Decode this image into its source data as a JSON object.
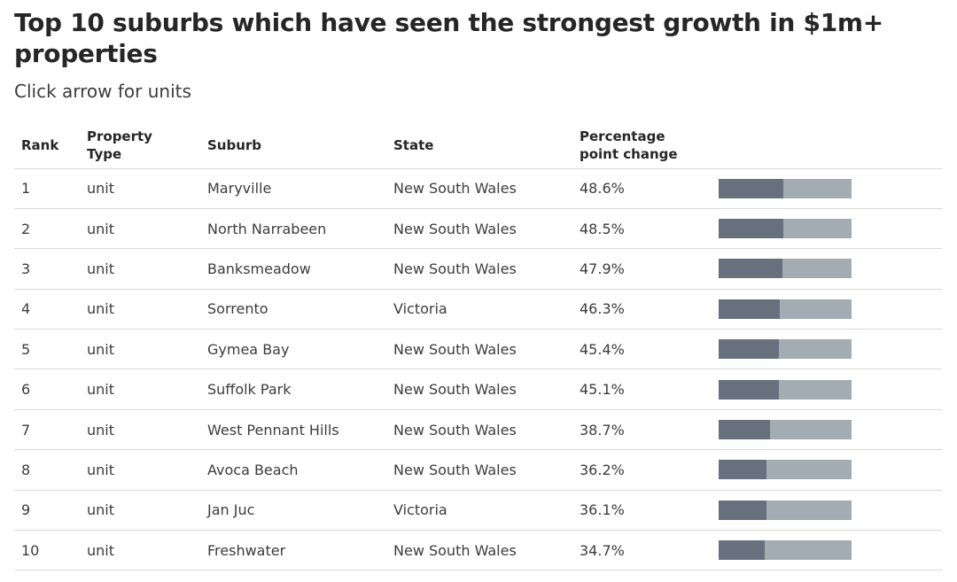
{
  "title": "Top 10 suburbs which have seen the strongest growth in $1m+ properties",
  "subtitle": "Click arrow for units",
  "colors": {
    "bar_fill": "#66717d",
    "bar_track": "#a3abb3",
    "text": "#3c3c3c",
    "rule": "#d9d9d9"
  },
  "table": {
    "headers": {
      "rank": "Rank",
      "property_type": "Property Type",
      "suburb": "Suburb",
      "state": "State",
      "change": "Percentage point change"
    },
    "rows": [
      {
        "rank": "1",
        "type": "unit",
        "suburb": "Maryville",
        "state": "New South Wales",
        "change": "48.6%"
      },
      {
        "rank": "2",
        "type": "unit",
        "suburb": "North Narrabeen",
        "state": "New South Wales",
        "change": "48.5%"
      },
      {
        "rank": "3",
        "type": "unit",
        "suburb": "Banksmeadow",
        "state": "New South Wales",
        "change": "47.9%"
      },
      {
        "rank": "4",
        "type": "unit",
        "suburb": "Sorrento",
        "state": "Victoria",
        "change": "46.3%"
      },
      {
        "rank": "5",
        "type": "unit",
        "suburb": "Gymea Bay",
        "state": "New South Wales",
        "change": "45.4%"
      },
      {
        "rank": "6",
        "type": "unit",
        "suburb": "Suffolk Park",
        "state": "New South Wales",
        "change": "45.1%"
      },
      {
        "rank": "7",
        "type": "unit",
        "suburb": "West Pennant Hills",
        "state": "New South Wales",
        "change": "38.7%"
      },
      {
        "rank": "8",
        "type": "unit",
        "suburb": "Avoca Beach",
        "state": "New South Wales",
        "change": "36.2%"
      },
      {
        "rank": "9",
        "type": "unit",
        "suburb": "Jan Juc",
        "state": "Victoria",
        "change": "36.1%"
      },
      {
        "rank": "10",
        "type": "unit",
        "suburb": "Freshwater",
        "state": "New South Wales",
        "change": "34.7%"
      }
    ]
  },
  "chart_data": {
    "type": "table",
    "title": "Top 10 suburbs which have seen the strongest growth in $1m+ properties",
    "subtitle": "Click arrow for units",
    "columns": [
      "Rank",
      "Property Type",
      "Suburb",
      "State",
      "Percentage point change"
    ],
    "categories": [
      "Maryville",
      "North Narrabeen",
      "Banksmeadow",
      "Sorrento",
      "Gymea Bay",
      "Suffolk Park",
      "West Pennant Hills",
      "Avoca Beach",
      "Jan Juc",
      "Freshwater"
    ],
    "values": [
      48.6,
      48.5,
      47.9,
      46.3,
      45.4,
      45.1,
      38.7,
      36.2,
      36.1,
      34.7
    ],
    "bar_max": 100
  }
}
